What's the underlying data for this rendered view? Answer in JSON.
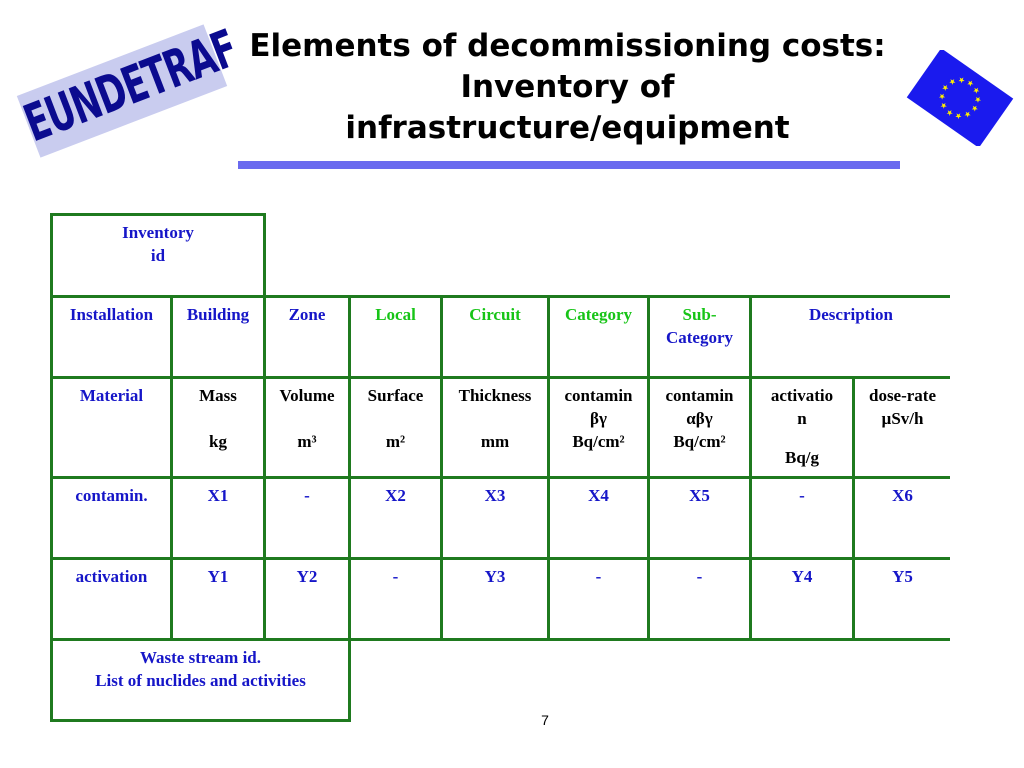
{
  "logo": {
    "text": "EUNDETRAF"
  },
  "title": {
    "line1": "Elements of decommissioning costs:",
    "line2": "Inventory of",
    "line3": "infrastructure/equipment"
  },
  "page_number": "7",
  "colors": {
    "rule": "#6a6aef",
    "border": "#1f7a1f",
    "blue_text": "#1616c8",
    "green_text": "#17c417",
    "flag_blue": "#1a1aee",
    "flag_star": "#ffee00"
  },
  "table": {
    "inventory_id": {
      "line1": "Inventory",
      "line2": "id"
    },
    "header": {
      "installation": "Installation",
      "building": "Building",
      "zone": "Zone",
      "local": "Local",
      "circuit": "Circuit",
      "category": "Category",
      "subcategory1": "Sub-",
      "subcategory2": "Category",
      "description": "Description"
    },
    "material": {
      "label": "Material",
      "mass": "Mass",
      "mass_unit": "kg",
      "volume": "Volume",
      "volume_unit": "m³",
      "surface": "Surface",
      "surface_unit": "m²",
      "thickness": "Thickness",
      "thickness_unit": "mm",
      "contam_bg_1": "contamin",
      "contam_bg_2": "βγ",
      "contam_bg_3": "Bq/cm²",
      "contam_abg_1": "contamin",
      "contam_abg_2": "αβγ",
      "contam_abg_3": "Bq/cm²",
      "activation_1": "activatio",
      "activation_2": "n",
      "activation_3": "Bq/g",
      "doserate_1": "dose-rate",
      "doserate_2": "µSv/h"
    },
    "contamin_row": {
      "label": "contamin.",
      "values": [
        "X1",
        "-",
        "X2",
        "X3",
        "X4",
        "X5",
        "-",
        "X6"
      ]
    },
    "activation_row": {
      "label": "activation",
      "values": [
        "Y1",
        "Y2",
        "-",
        "Y3",
        "-",
        "-",
        "Y4",
        "Y5"
      ]
    },
    "waste": {
      "line1": "Waste stream id.",
      "line2": "List of nuclides and activities"
    }
  }
}
